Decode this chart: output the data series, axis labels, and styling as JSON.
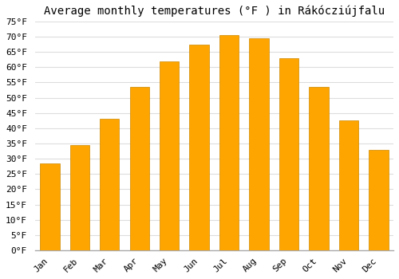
{
  "title": "Average monthly temperatures (°F ) in Rákócziújfalu",
  "months": [
    "Jan",
    "Feb",
    "Mar",
    "Apr",
    "May",
    "Jun",
    "Jul",
    "Aug",
    "Sep",
    "Oct",
    "Nov",
    "Dec"
  ],
  "values": [
    28.5,
    34.5,
    43.0,
    53.5,
    62.0,
    67.5,
    70.5,
    69.5,
    63.0,
    53.5,
    42.5,
    33.0
  ],
  "bar_color": "#FFA500",
  "bar_edge_color": "#CC8800",
  "background_color": "#ffffff",
  "grid_color": "#dddddd",
  "ylim": [
    0,
    75
  ],
  "yticks": [
    0,
    5,
    10,
    15,
    20,
    25,
    30,
    35,
    40,
    45,
    50,
    55,
    60,
    65,
    70,
    75
  ],
  "title_fontsize": 10,
  "tick_fontsize": 8,
  "font_family": "monospace"
}
